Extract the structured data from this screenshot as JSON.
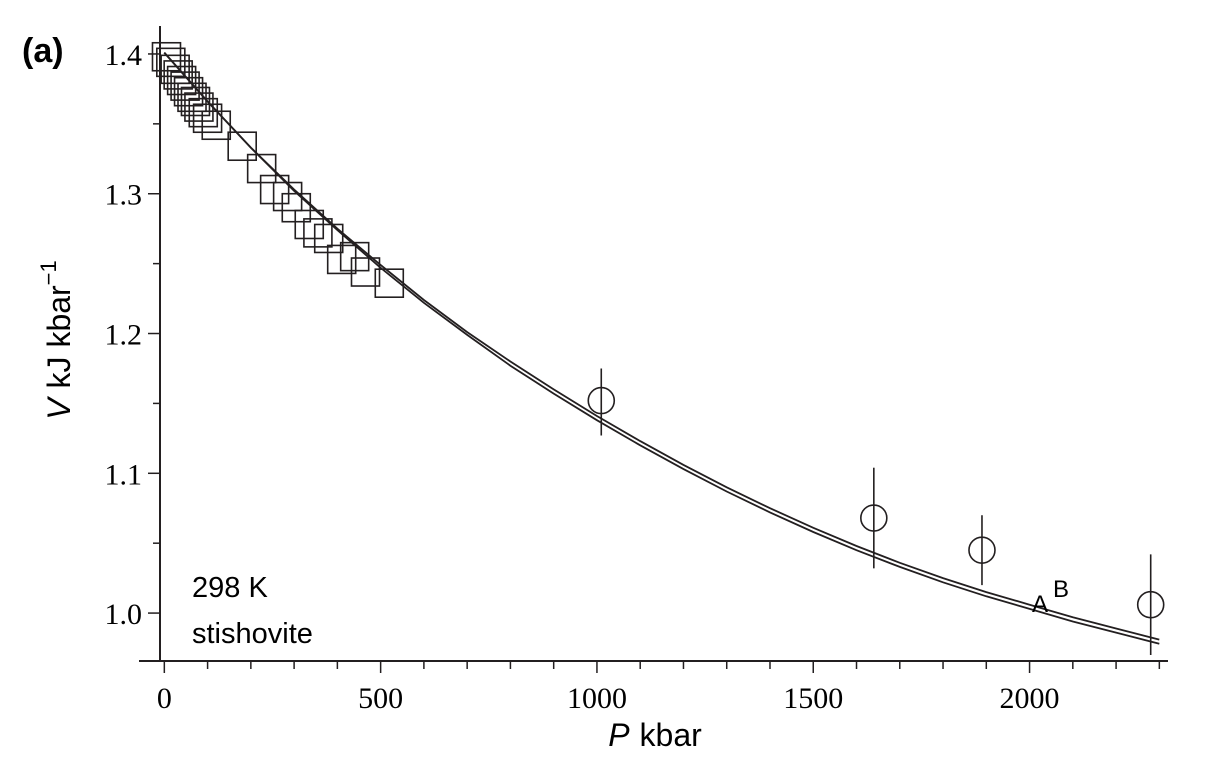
{
  "panel_label": "(a)",
  "chart_data": {
    "type": "scatter",
    "title": "",
    "xlabel_var": "P",
    "xlabel_unit": "kbar",
    "ylabel_var": "V",
    "ylabel_unit": "kJ kbar",
    "ylabel_exp": "−1",
    "xlim": [
      -10,
      2320
    ],
    "ylim": [
      0.965,
      1.42
    ],
    "x_major_ticks": [
      0,
      500,
      1000,
      1500,
      2000
    ],
    "x_tick_labels": [
      "0",
      "500",
      "1000",
      "1500",
      "2000"
    ],
    "x_minor_step": 100,
    "y_major_ticks": [
      1.0,
      1.1,
      1.2,
      1.3,
      1.4
    ],
    "y_tick_labels": [
      "1.0",
      "1.1",
      "1.2",
      "1.3",
      "1.4"
    ],
    "y_minor_step": 0.05,
    "grid": false,
    "annotation_lines": [
      "298 K",
      "stishovite"
    ],
    "square_series": {
      "marker": "square",
      "x": [
        5,
        15,
        25,
        32,
        40,
        48,
        56,
        64,
        72,
        80,
        90,
        100,
        120,
        180,
        225,
        255,
        285,
        305,
        335,
        355,
        380,
        410,
        440,
        465,
        520
      ],
      "y": [
        1.398,
        1.394,
        1.389,
        1.385,
        1.381,
        1.377,
        1.373,
        1.369,
        1.366,
        1.362,
        1.358,
        1.354,
        1.349,
        1.334,
        1.318,
        1.303,
        1.298,
        1.29,
        1.278,
        1.272,
        1.268,
        1.253,
        1.255,
        1.244,
        1.236
      ]
    },
    "circle_series": {
      "marker": "circle",
      "x": [
        1010,
        1640,
        1890,
        2280
      ],
      "y": [
        1.152,
        1.068,
        1.045,
        1.006
      ],
      "err_low": [
        1.127,
        1.032,
        1.02,
        0.97
      ],
      "err_high": [
        1.175,
        1.104,
        1.07,
        1.042
      ]
    },
    "curves": [
      {
        "name": "A",
        "x": [
          0,
          100,
          200,
          300,
          400,
          500,
          600,
          700,
          800,
          900,
          1000,
          1100,
          1200,
          1300,
          1400,
          1500,
          1600,
          1700,
          1800,
          1900,
          2000,
          2100,
          2200,
          2300
        ],
        "y": [
          1.401,
          1.366,
          1.333,
          1.302,
          1.274,
          1.247,
          1.222,
          1.199,
          1.177,
          1.157,
          1.138,
          1.12,
          1.103,
          1.087,
          1.072,
          1.058,
          1.045,
          1.033,
          1.022,
          1.012,
          1.003,
          0.994,
          0.986,
          0.978
        ]
      },
      {
        "name": "B",
        "x": [
          0,
          100,
          200,
          300,
          400,
          500,
          600,
          700,
          800,
          900,
          1000,
          1100,
          1200,
          1300,
          1400,
          1500,
          1600,
          1700,
          1800,
          1900,
          2000,
          2100,
          2200,
          2300
        ],
        "y": [
          1.401,
          1.366,
          1.333,
          1.303,
          1.275,
          1.249,
          1.224,
          1.201,
          1.18,
          1.16,
          1.141,
          1.123,
          1.106,
          1.09,
          1.075,
          1.061,
          1.048,
          1.036,
          1.025,
          1.015,
          1.006,
          0.997,
          0.989,
          0.981
        ]
      }
    ],
    "curve_label_A": "A",
    "curve_label_B": "B"
  }
}
